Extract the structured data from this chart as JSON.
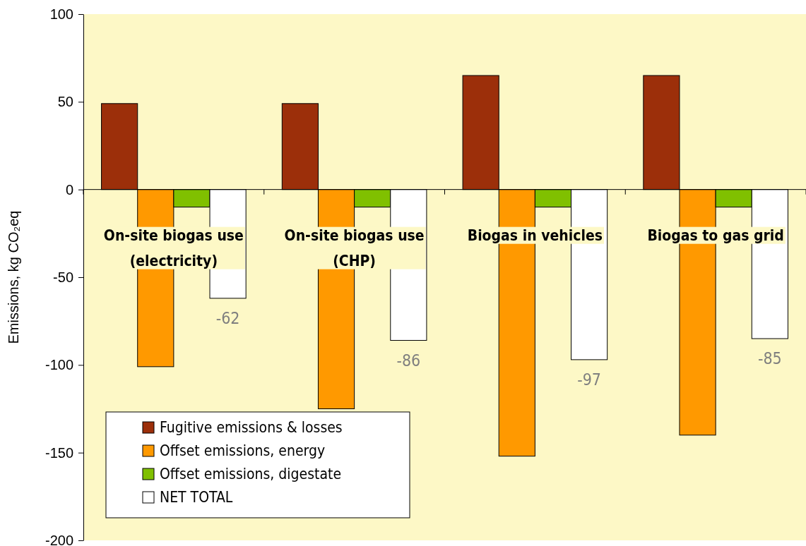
{
  "chart_data": {
    "type": "bar",
    "ylabel": "Emissions, kg CO₂eq",
    "categories": [
      "On-site biogas use (electricity)",
      "On-site biogas use (CHP)",
      "Biogas in vehicles",
      "Biogas to gas grid"
    ],
    "series": [
      {
        "name": "Fugitive emissions & losses",
        "color": "#9c2f0a",
        "values": [
          49,
          49,
          65,
          65
        ]
      },
      {
        "name": "Offset emissions, energy",
        "color": "#ff9900",
        "values": [
          -101,
          -125,
          -152,
          -140
        ]
      },
      {
        "name": "Offset emissions, digestate",
        "color": "#80c000",
        "values": [
          -10,
          -10,
          -10,
          -10
        ]
      },
      {
        "name": "NET TOTAL",
        "color": "#ffffff",
        "values": [
          -62,
          -86,
          -97,
          -85
        ],
        "value_labels": [
          "-62",
          "-86",
          "-97",
          "-85"
        ]
      }
    ],
    "ylim": [
      -200,
      100
    ],
    "yticks": [
      -200,
      -150,
      -100,
      -50,
      0,
      50,
      100
    ],
    "grid": false,
    "legend": "bottom left"
  }
}
